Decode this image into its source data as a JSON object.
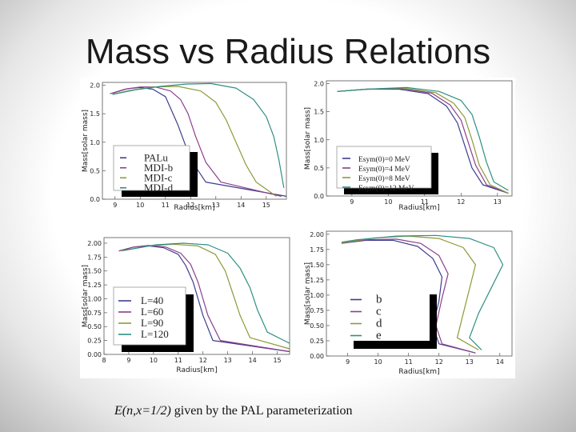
{
  "slide": {
    "title": "Mass vs Radius Relations",
    "caption_math": "E(n,x=1/2)",
    "caption_text": " given by the PAL parameterization"
  },
  "chart_data": [
    {
      "type": "line",
      "xlabel": "Radius[km]",
      "ylabel": "Mass[solar mass]",
      "xlim": [
        8.5,
        15.8
      ],
      "ylim": [
        0,
        2.05
      ],
      "xticks": [
        9,
        10,
        11,
        12,
        13,
        14,
        15
      ],
      "yticks": [
        0.0,
        0.5,
        1.0,
        1.5,
        2.0
      ],
      "legend_position": "bottom-left",
      "series": [
        {
          "name": "PALu",
          "color": "#3d3d8f",
          "points": [
            [
              15.8,
              0.05
            ],
            [
              12.6,
              0.3
            ],
            [
              12.0,
              0.7
            ],
            [
              11.5,
              1.3
            ],
            [
              11.2,
              1.6
            ],
            [
              11.0,
              1.8
            ],
            [
              10.5,
              1.93
            ],
            [
              10.0,
              1.96
            ],
            [
              9.5,
              1.94
            ],
            [
              8.9,
              1.86
            ]
          ]
        },
        {
          "name": "MDI-b",
          "color": "#8c3f8c",
          "points": [
            [
              15.6,
              0.05
            ],
            [
              13.2,
              0.3
            ],
            [
              12.6,
              0.65
            ],
            [
              12.2,
              1.1
            ],
            [
              11.9,
              1.5
            ],
            [
              11.6,
              1.75
            ],
            [
              11.2,
              1.9
            ],
            [
              10.6,
              1.97
            ],
            [
              10.0,
              1.97
            ],
            [
              9.4,
              1.93
            ],
            [
              8.8,
              1.85
            ]
          ]
        },
        {
          "name": "MDI-c",
          "color": "#8f9a3a",
          "points": [
            [
              15.4,
              0.05
            ],
            [
              14.6,
              0.3
            ],
            [
              14.2,
              0.6
            ],
            [
              13.8,
              1.0
            ],
            [
              13.4,
              1.4
            ],
            [
              13.0,
              1.7
            ],
            [
              12.4,
              1.9
            ],
            [
              11.5,
              1.98
            ],
            [
              10.5,
              1.97
            ],
            [
              9.6,
              1.91
            ],
            [
              8.9,
              1.84
            ]
          ]
        },
        {
          "name": "MDI-d",
          "color": "#2f8f82",
          "points": [
            [
              15.7,
              0.2
            ],
            [
              15.5,
              0.7
            ],
            [
              15.3,
              1.1
            ],
            [
              15.0,
              1.45
            ],
            [
              14.5,
              1.75
            ],
            [
              13.8,
              1.95
            ],
            [
              12.8,
              2.03
            ],
            [
              11.8,
              2.02
            ],
            [
              10.8,
              1.98
            ],
            [
              9.8,
              1.92
            ],
            [
              8.9,
              1.84
            ]
          ]
        }
      ]
    },
    {
      "type": "line",
      "xlabel": "Radius[km]",
      "ylabel": "Mass[solar mass]",
      "xlim": [
        8.3,
        13.4
      ],
      "ylim": [
        0,
        2.05
      ],
      "xticks": [
        9,
        10,
        11,
        12,
        13
      ],
      "yticks": [
        0.0,
        0.5,
        1.0,
        1.5,
        2.0
      ],
      "legend_position": "bottom-left",
      "series": [
        {
          "name": "Esym(0)=0 MeV",
          "color": "#3d3d8f",
          "points": [
            [
              13.3,
              0.05
            ],
            [
              12.6,
              0.2
            ],
            [
              12.3,
              0.5
            ],
            [
              12.1,
              0.9
            ],
            [
              11.9,
              1.3
            ],
            [
              11.6,
              1.6
            ],
            [
              11.1,
              1.82
            ],
            [
              10.3,
              1.9
            ],
            [
              9.4,
              1.9
            ],
            [
              8.6,
              1.86
            ]
          ]
        },
        {
          "name": "Esym(0)=4 MeV",
          "color": "#8c3f8c",
          "points": [
            [
              13.3,
              0.05
            ],
            [
              12.7,
              0.2
            ],
            [
              12.4,
              0.55
            ],
            [
              12.2,
              0.95
            ],
            [
              12.0,
              1.35
            ],
            [
              11.7,
              1.62
            ],
            [
              11.2,
              1.83
            ],
            [
              10.4,
              1.91
            ],
            [
              9.4,
              1.9
            ],
            [
              8.6,
              1.86
            ]
          ]
        },
        {
          "name": "Esym(0)=8 MeV",
          "color": "#8f9a3a",
          "points": [
            [
              13.3,
              0.05
            ],
            [
              12.8,
              0.2
            ],
            [
              12.5,
              0.55
            ],
            [
              12.3,
              1.0
            ],
            [
              12.1,
              1.4
            ],
            [
              11.8,
              1.65
            ],
            [
              11.3,
              1.84
            ],
            [
              10.4,
              1.92
            ],
            [
              9.4,
              1.9
            ],
            [
              8.6,
              1.86
            ]
          ]
        },
        {
          "name": "Esym(0)=12 MeV",
          "color": "#2f8f82",
          "points": [
            [
              13.3,
              0.1
            ],
            [
              12.9,
              0.25
            ],
            [
              12.7,
              0.6
            ],
            [
              12.5,
              1.05
            ],
            [
              12.3,
              1.45
            ],
            [
              12.0,
              1.7
            ],
            [
              11.4,
              1.86
            ],
            [
              10.5,
              1.93
            ],
            [
              9.4,
              1.9
            ],
            [
              8.6,
              1.86
            ]
          ]
        }
      ]
    },
    {
      "type": "line",
      "xlabel": "Radius[km]",
      "ylabel": "Mass[solar mass]",
      "xlim": [
        8.0,
        15.5
      ],
      "ylim": [
        0,
        2.1
      ],
      "xticks": [
        8,
        9,
        10,
        11,
        12,
        13,
        14,
        15
      ],
      "yticks": [
        0.0,
        0.25,
        0.5,
        0.75,
        1.0,
        1.25,
        1.5,
        1.75,
        2.0
      ],
      "legend_position": "bottom-left",
      "series": [
        {
          "name": "L=40",
          "color": "#3d3d8f",
          "points": [
            [
              15.5,
              0.05
            ],
            [
              12.4,
              0.25
            ],
            [
              12.0,
              0.7
            ],
            [
              11.6,
              1.3
            ],
            [
              11.3,
              1.6
            ],
            [
              11.0,
              1.8
            ],
            [
              10.4,
              1.92
            ],
            [
              9.8,
              1.95
            ],
            [
              9.2,
              1.93
            ],
            [
              8.6,
              1.86
            ]
          ]
        },
        {
          "name": "L=60",
          "color": "#8c3f8c",
          "points": [
            [
              15.5,
              0.05
            ],
            [
              12.7,
              0.25
            ],
            [
              12.2,
              0.7
            ],
            [
              11.8,
              1.3
            ],
            [
              11.5,
              1.62
            ],
            [
              11.1,
              1.82
            ],
            [
              10.5,
              1.93
            ],
            [
              9.8,
              1.96
            ],
            [
              9.2,
              1.93
            ],
            [
              8.6,
              1.86
            ]
          ]
        },
        {
          "name": "L=90",
          "color": "#8f9a3a",
          "points": [
            [
              15.5,
              0.1
            ],
            [
              13.9,
              0.3
            ],
            [
              13.5,
              0.7
            ],
            [
              13.2,
              1.1
            ],
            [
              12.9,
              1.5
            ],
            [
              12.5,
              1.8
            ],
            [
              11.8,
              1.95
            ],
            [
              10.8,
              1.98
            ],
            [
              9.8,
              1.95
            ],
            [
              8.7,
              1.86
            ]
          ]
        },
        {
          "name": "L=120",
          "color": "#2f8f82",
          "points": [
            [
              15.5,
              0.2
            ],
            [
              14.6,
              0.4
            ],
            [
              14.2,
              0.8
            ],
            [
              13.9,
              1.2
            ],
            [
              13.5,
              1.55
            ],
            [
              13.0,
              1.82
            ],
            [
              12.2,
              1.97
            ],
            [
              11.2,
              2.0
            ],
            [
              10.1,
              1.97
            ],
            [
              8.8,
              1.87
            ]
          ]
        }
      ]
    },
    {
      "type": "line",
      "xlabel": "Radius[km]",
      "ylabel": "Mass[solar mass]",
      "xlim": [
        8.3,
        14.4
      ],
      "ylim": [
        0,
        2.05
      ],
      "xticks": [
        9,
        10,
        11,
        12,
        13,
        14
      ],
      "yticks": [
        0.0,
        0.25,
        0.5,
        0.75,
        1.0,
        1.25,
        1.5,
        1.75,
        2.0
      ],
      "legend_position": "bottom-left",
      "series": [
        {
          "name": "b",
          "color": "#3d3d8f",
          "points": [
            [
              13.2,
              0.05
            ],
            [
              12.0,
              0.2
            ],
            [
              11.8,
              0.5
            ],
            [
              12.0,
              0.9
            ],
            [
              12.1,
              1.3
            ],
            [
              11.8,
              1.6
            ],
            [
              11.3,
              1.8
            ],
            [
              10.5,
              1.9
            ],
            [
              9.6,
              1.9
            ],
            [
              8.8,
              1.85
            ]
          ]
        },
        {
          "name": "c",
          "color": "#8c3f8c",
          "points": [
            [
              13.2,
              0.05
            ],
            [
              12.1,
              0.2
            ],
            [
              11.9,
              0.5
            ],
            [
              12.1,
              0.95
            ],
            [
              12.3,
              1.35
            ],
            [
              12.0,
              1.65
            ],
            [
              11.4,
              1.85
            ],
            [
              10.6,
              1.92
            ],
            [
              9.6,
              1.91
            ],
            [
              8.8,
              1.85
            ]
          ]
        },
        {
          "name": "d",
          "color": "#8f9a3a",
          "points": [
            [
              13.3,
              0.1
            ],
            [
              12.6,
              0.3
            ],
            [
              12.8,
              0.7
            ],
            [
              13.0,
              1.1
            ],
            [
              13.2,
              1.5
            ],
            [
              12.8,
              1.78
            ],
            [
              12.0,
              1.93
            ],
            [
              11.0,
              1.97
            ],
            [
              9.9,
              1.94
            ],
            [
              8.8,
              1.86
            ]
          ]
        },
        {
          "name": "e",
          "color": "#2f8f82",
          "points": [
            [
              13.4,
              0.1
            ],
            [
              13.0,
              0.3
            ],
            [
              13.3,
              0.7
            ],
            [
              13.7,
              1.1
            ],
            [
              14.1,
              1.5
            ],
            [
              13.8,
              1.78
            ],
            [
              13.0,
              1.93
            ],
            [
              11.9,
              1.98
            ],
            [
              10.6,
              1.97
            ],
            [
              9.3,
              1.91
            ],
            [
              8.8,
              1.87
            ]
          ]
        }
      ]
    }
  ]
}
